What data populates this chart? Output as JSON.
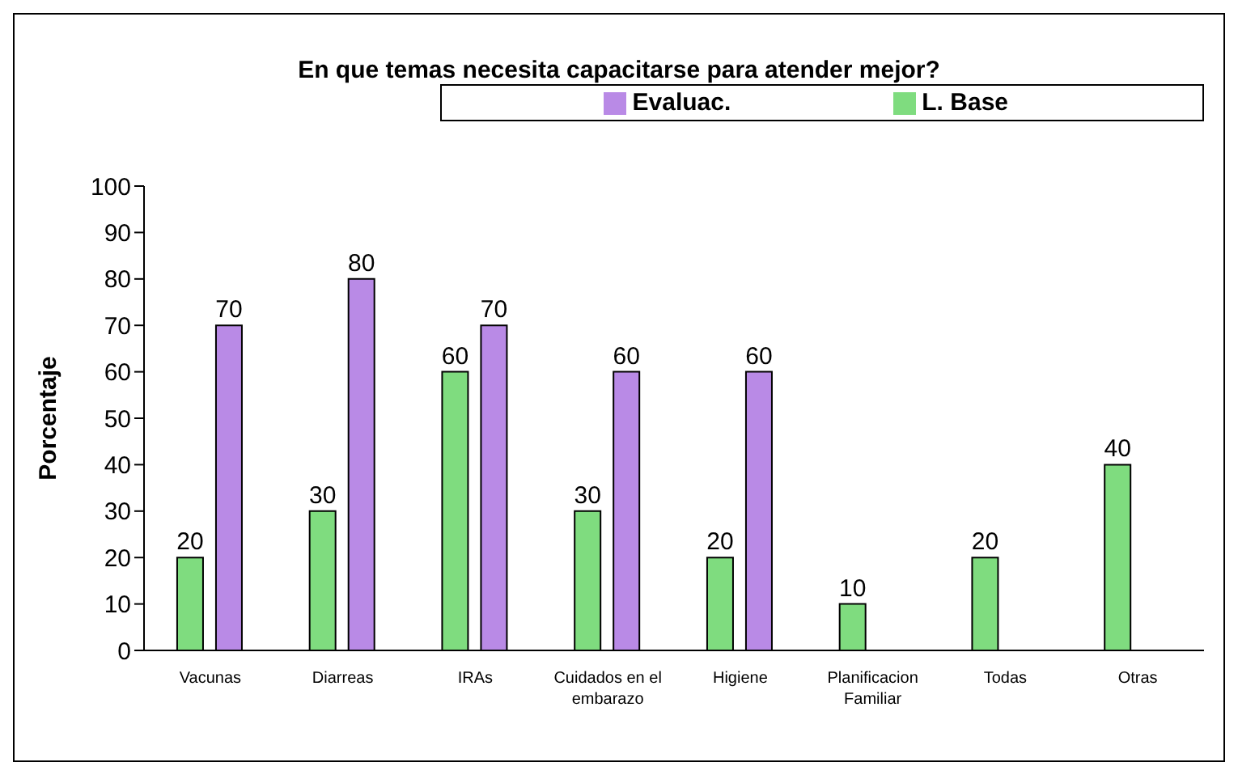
{
  "chart_data": {
    "type": "bar",
    "title": "En que temas necesita capacitarse para atender mejor?",
    "ylabel": "Porcentaje",
    "categories": [
      "Vacunas",
      "Diarreas",
      "IRAs",
      "Cuidados en el embarazo",
      "Higiene",
      "Planificacion Familiar",
      "Todas",
      "Otras"
    ],
    "series": [
      {
        "name": "L. Base",
        "color": "#7fdc7f",
        "values": [
          20,
          30,
          60,
          30,
          20,
          10,
          20,
          40
        ]
      },
      {
        "name": "Evaluac.",
        "color": "#b98ae6",
        "values": [
          70,
          80,
          70,
          60,
          60,
          null,
          null,
          null
        ]
      }
    ],
    "ylim": [
      0,
      100
    ],
    "yticks": [
      0,
      10,
      20,
      30,
      40,
      50,
      60,
      70,
      80,
      90,
      100
    ],
    "data_labels": true,
    "legend": "top right",
    "grid": false
  }
}
